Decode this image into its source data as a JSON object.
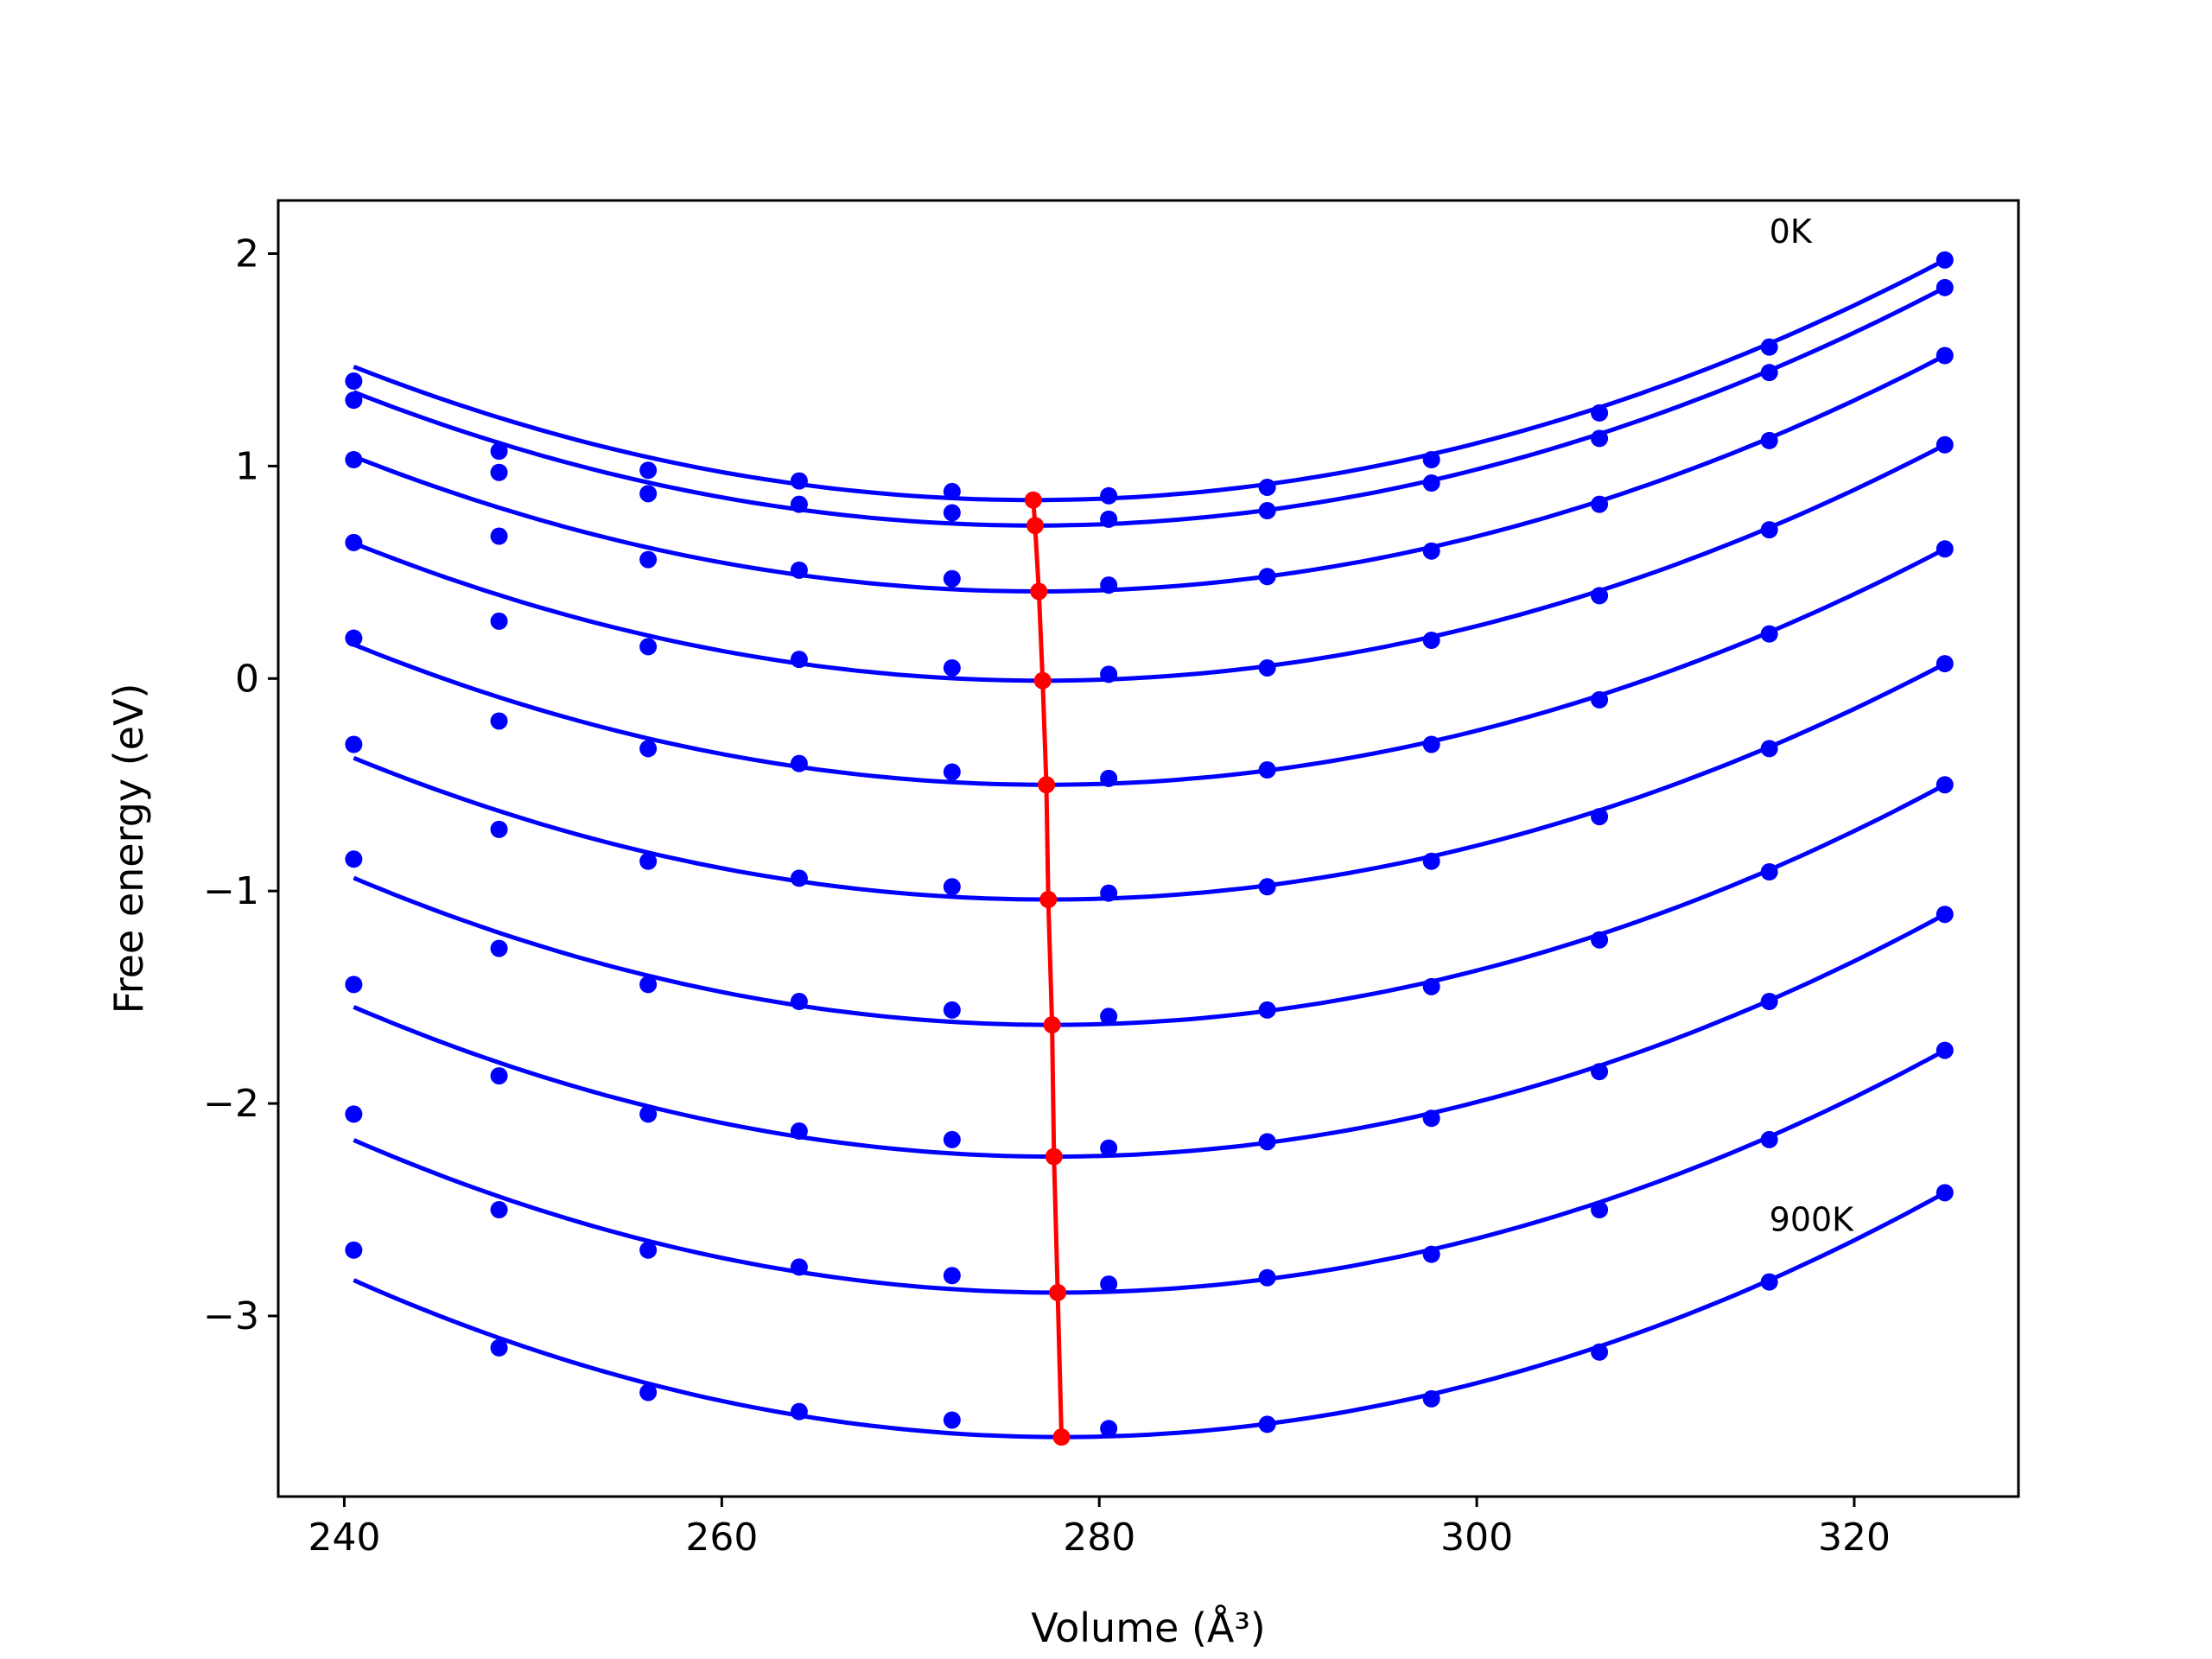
{
  "chart_data": {
    "type": "scatter",
    "xlabel": "Volume (Å³)",
    "ylabel": "Free energy (eV)",
    "xlim": [
      236.5,
      328.7
    ],
    "ylim": [
      -3.85,
      2.25
    ],
    "xticks": [
      240,
      260,
      280,
      300,
      320
    ],
    "yticks": [
      -3,
      -2,
      -1,
      0,
      1,
      2
    ],
    "xtick_labels": [
      "240",
      "260",
      "280",
      "300",
      "320"
    ],
    "ytick_labels": [
      "−3",
      "−2",
      "−1",
      "0",
      "1",
      "2"
    ],
    "grid": false,
    "colors": {
      "points": "#0000ff",
      "fits": "#0000ff",
      "minima": "#ff0000"
    },
    "annotations": [
      {
        "text": "0K",
        "x": 315.5,
        "y": 2.05
      },
      {
        "text": "900K",
        "x": 315.5,
        "y": -2.6
      }
    ],
    "volumes": [
      240.5,
      248.2,
      256.1,
      264.1,
      272.2,
      280.5,
      288.9,
      297.6,
      306.5,
      315.5,
      324.8
    ],
    "series": [
      {
        "energies": [
          1.4,
          1.07,
          0.98,
          0.93,
          0.88,
          0.86,
          0.9,
          1.03,
          1.25,
          1.56,
          1.97
        ],
        "fit_min_x": 276.5,
        "fit_min_y": 0.84
      },
      {
        "energies": [
          1.31,
          0.97,
          0.87,
          0.82,
          0.78,
          0.75,
          0.79,
          0.92,
          1.13,
          1.44,
          1.84
        ],
        "fit_min_x": 276.6,
        "fit_min_y": 0.72
      },
      {
        "energies": [
          1.03,
          0.67,
          0.56,
          0.51,
          0.47,
          0.44,
          0.48,
          0.6,
          0.82,
          1.12,
          1.52
        ],
        "fit_min_x": 276.8,
        "fit_min_y": 0.41
      },
      {
        "energies": [
          0.64,
          0.27,
          0.15,
          0.09,
          0.05,
          0.02,
          0.05,
          0.18,
          0.39,
          0.7,
          1.1
        ],
        "fit_min_x": 277.0,
        "fit_min_y": -0.01
      },
      {
        "energies": [
          0.19,
          -0.2,
          -0.33,
          -0.4,
          -0.44,
          -0.47,
          -0.43,
          -0.31,
          -0.1,
          0.21,
          0.61
        ],
        "fit_min_x": 277.2,
        "fit_min_y": -0.5
      },
      {
        "energies": [
          -0.31,
          -0.71,
          -0.86,
          -0.94,
          -0.98,
          -1.01,
          -0.98,
          -0.86,
          -0.65,
          -0.33,
          0.07
        ],
        "fit_min_x": 277.3,
        "fit_min_y": -1.04
      },
      {
        "energies": [
          -0.85,
          -1.27,
          -1.44,
          -1.52,
          -1.56,
          -1.59,
          -1.56,
          -1.45,
          -1.23,
          -0.91,
          -0.5
        ],
        "fit_min_x": 277.5,
        "fit_min_y": -1.63
      },
      {
        "energies": [
          -1.44,
          -1.87,
          -2.05,
          -2.13,
          -2.17,
          -2.21,
          -2.18,
          -2.07,
          -1.85,
          -1.52,
          -1.11
        ],
        "fit_min_x": 277.6,
        "fit_min_y": -2.25
      },
      {
        "energies": [
          -2.05,
          -2.5,
          -2.69,
          -2.77,
          -2.81,
          -2.85,
          -2.82,
          -2.71,
          -2.5,
          -2.17,
          -1.75
        ],
        "fit_min_x": 277.8,
        "fit_min_y": -2.89
      },
      {
        "energies": [
          -2.69,
          -3.15,
          -3.36,
          -3.45,
          -3.49,
          -3.53,
          -3.51,
          -3.39,
          -3.17,
          -2.84,
          -2.42
        ],
        "fit_min_x": 278.0,
        "fit_min_y": -3.57
      }
    ]
  }
}
